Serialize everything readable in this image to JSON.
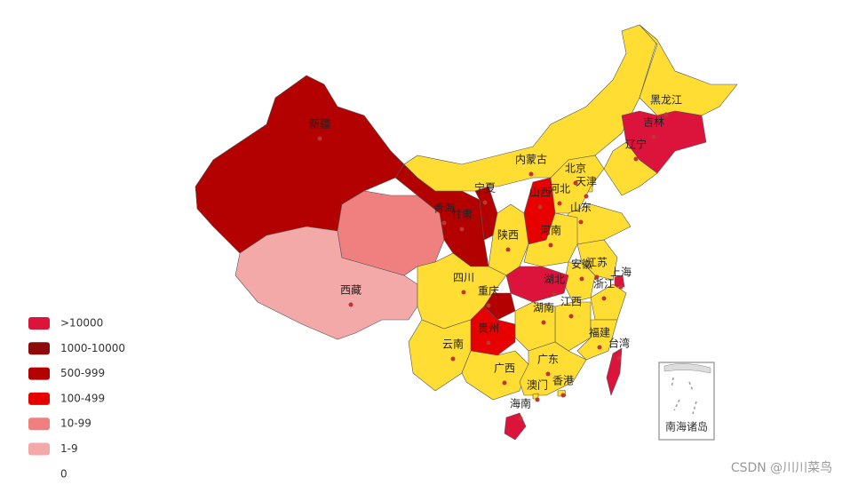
{
  "legend": [
    {
      "label": ">10000",
      "color": "#dc143c"
    },
    {
      "label": "1000-10000",
      "color": "#8b0a0a"
    },
    {
      "label": "500-999",
      "color": "#b30000"
    },
    {
      "label": "100-499",
      "color": "#e60000"
    },
    {
      "label": "10-99",
      "color": "#f08080"
    },
    {
      "label": "1-9",
      "color": "#f4a9a9"
    },
    {
      "label": "0",
      "color": "#ffffff"
    }
  ],
  "provinces": [
    {
      "name": "新疆",
      "color": "#b30000"
    },
    {
      "name": "西藏",
      "color": "#f4a9a9"
    },
    {
      "name": "青海",
      "color": "#f08080"
    },
    {
      "name": "甘肃",
      "color": "#b30000"
    },
    {
      "name": "宁夏",
      "color": "#b30000"
    },
    {
      "name": "内蒙古",
      "color": "#ffdd33"
    },
    {
      "name": "黑龙江",
      "color": "#ffdd33"
    },
    {
      "name": "吉林",
      "color": "#dc143c"
    },
    {
      "name": "辽宁",
      "color": "#ffdd33"
    },
    {
      "name": "北京",
      "color": "#ffdd33"
    },
    {
      "name": "天津",
      "color": "#ffdd33"
    },
    {
      "name": "河北",
      "color": "#ffdd33"
    },
    {
      "name": "山西",
      "color": "#e60000"
    },
    {
      "name": "山东",
      "color": "#ffdd33"
    },
    {
      "name": "陕西",
      "color": "#ffdd33"
    },
    {
      "name": "河南",
      "color": "#ffdd33"
    },
    {
      "name": "江苏",
      "color": "#ffdd33"
    },
    {
      "name": "安徽",
      "color": "#ffdd33"
    },
    {
      "name": "上海",
      "color": "#dc143c"
    },
    {
      "name": "湖北",
      "color": "#dc143c"
    },
    {
      "name": "浙江",
      "color": "#ffdd33"
    },
    {
      "name": "四川",
      "color": "#ffdd33"
    },
    {
      "name": "重庆",
      "color": "#b30000"
    },
    {
      "name": "江西",
      "color": "#ffdd33"
    },
    {
      "name": "湖南",
      "color": "#ffdd33"
    },
    {
      "name": "贵州",
      "color": "#e60000"
    },
    {
      "name": "云南",
      "color": "#ffdd33"
    },
    {
      "name": "福建",
      "color": "#ffdd33"
    },
    {
      "name": "台湾",
      "color": "#dc143c"
    },
    {
      "name": "广西",
      "color": "#ffdd33"
    },
    {
      "name": "广东",
      "color": "#ffdd33"
    },
    {
      "name": "澳门",
      "color": "#ffdd33"
    },
    {
      "name": "香港",
      "color": "#ffdd33"
    },
    {
      "name": "海南",
      "color": "#dc143c"
    }
  ],
  "inset_label": "南海诸岛",
  "watermark": "CSDN @川川菜鸟"
}
